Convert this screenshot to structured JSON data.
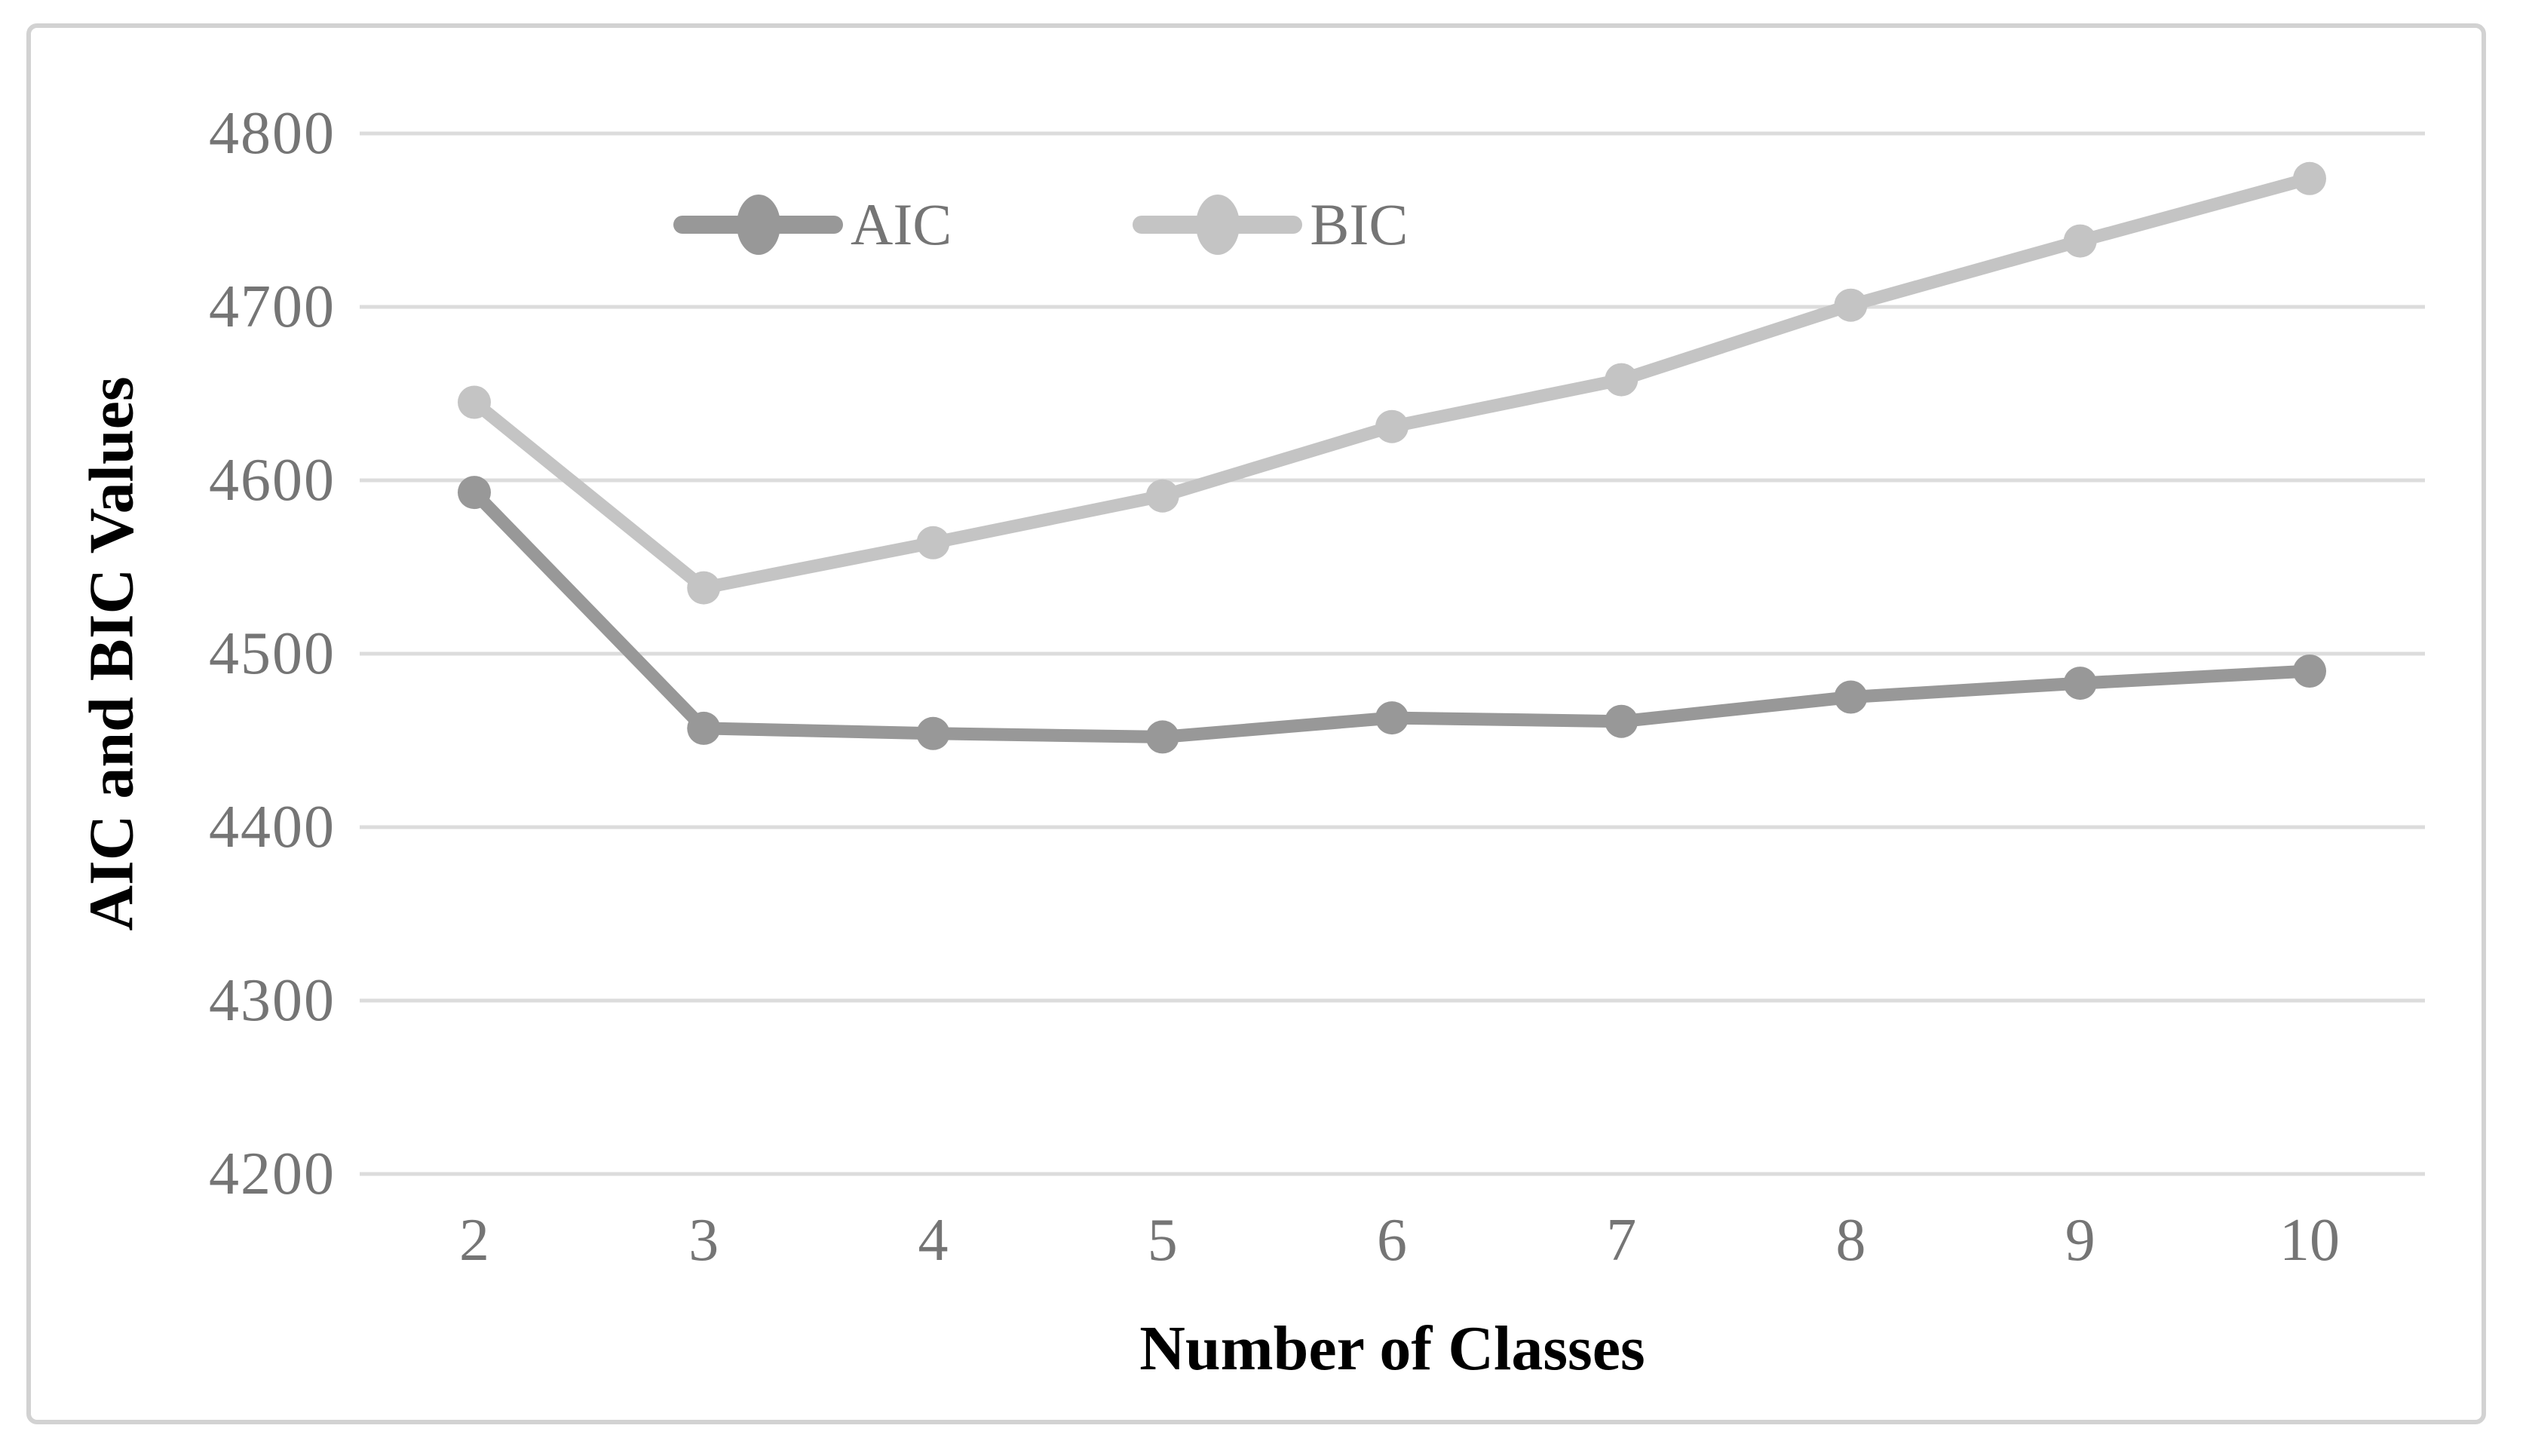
{
  "figure": {
    "background": "#ffffff",
    "frame_color": "#d2d2d2"
  },
  "chart_data": {
    "type": "line",
    "title": "",
    "xlabel": "Number of Classes",
    "ylabel": "AIC and BIC Values",
    "categories": [
      "2",
      "3",
      "4",
      "5",
      "6",
      "7",
      "8",
      "9",
      "10"
    ],
    "series": [
      {
        "name": "AIC",
        "color": "#989898",
        "values": [
          4593,
          4457,
          4454,
          4452,
          4463,
          4461,
          4475,
          4483,
          4490
        ]
      },
      {
        "name": "BIC",
        "color": "#c4c4c4",
        "values": [
          4645,
          4538,
          4564,
          4591,
          4631,
          4658,
          4701,
          4738,
          4774
        ]
      }
    ],
    "ylim": [
      4200,
      4800
    ],
    "yticks": [
      4800,
      4700,
      4600,
      4500,
      4400,
      4300,
      4200
    ],
    "grid": true,
    "gridline_color": "#dcdcdc",
    "tick_label_color": "#757575",
    "legend_text_color": "#757575",
    "axis_title_color": "#000000",
    "legend_position": "top-center-inside",
    "marker": "circle"
  }
}
